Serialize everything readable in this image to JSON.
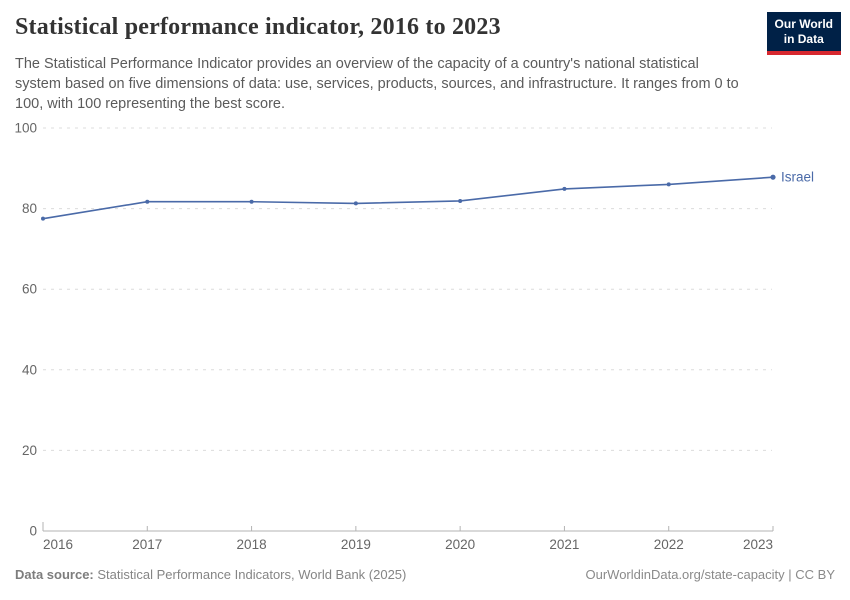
{
  "header": {
    "title": "Statistical performance indicator, 2016 to 2023",
    "subtitle": "The Statistical Performance Indicator provides an overview of the capacity of a country's national statistical system based on five dimensions of data: use, services, products, sources, and infrastructure. It ranges from 0 to 100, with 100 representing the best score."
  },
  "logo": {
    "line1": "Our World",
    "line2": "in Data",
    "background_color": "#002147",
    "accent_color": "#d7282f"
  },
  "chart_data": {
    "type": "line",
    "title": "Statistical performance indicator, 2016 to 2023",
    "x": [
      2016,
      2017,
      2018,
      2019,
      2020,
      2021,
      2022,
      2023
    ],
    "series": [
      {
        "name": "Israel",
        "values": [
          77.5,
          81.7,
          81.7,
          81.3,
          81.9,
          84.9,
          86.0,
          87.8
        ],
        "color": "#4a6aa8"
      }
    ],
    "xlabel": "",
    "ylabel": "",
    "ylim": [
      0,
      100
    ],
    "yticks": [
      0,
      20,
      40,
      60,
      80,
      100
    ],
    "grid": "horizontal-dashed",
    "legend_position": "end-of-line-label",
    "end_label": "Israel",
    "gridline_color": "#dcdcdc",
    "axis_color": "#b3b3b3",
    "tick_label_color": "#666666"
  },
  "footer": {
    "source_label": "Data source:",
    "source_text": " Statistical Performance Indicators, World Bank (2025)",
    "link_text": "OurWorldinData.org/state-capacity | CC BY"
  }
}
